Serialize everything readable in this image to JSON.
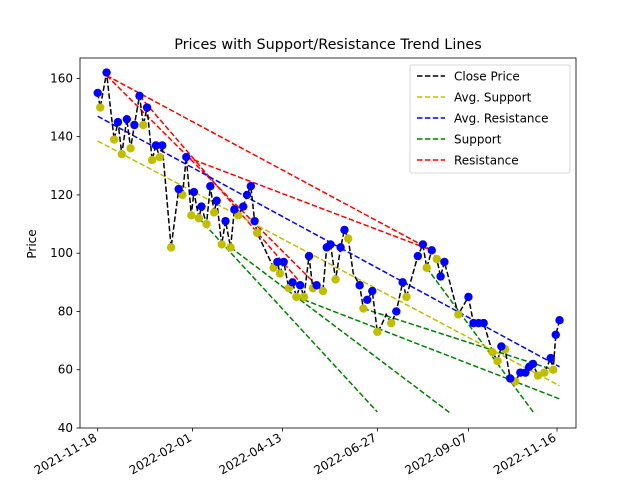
{
  "chart_data": {
    "type": "line",
    "title": "Prices with Support/Resistance Trend Lines",
    "xlabel": "",
    "ylabel": "Price",
    "xlim": [
      "2021-11-04",
      "2022-12-01"
    ],
    "ylim": [
      40,
      167
    ],
    "x_ticks": [
      "2021-11-18",
      "2022-02-01",
      "2022-04-13",
      "2022-06-27",
      "2022-09-07",
      "2022-11-16"
    ],
    "y_ticks": [
      40,
      60,
      80,
      100,
      120,
      140,
      160
    ],
    "grid": false,
    "legend": {
      "position": "top-right",
      "entries": [
        "Close Price",
        "Avg. Support",
        "Avg. Resistance",
        "Support",
        "Resistance"
      ]
    },
    "colors": {
      "close": "#000000",
      "avg_support": "#bfbf00",
      "avg_resistance": "#0000ff",
      "support": "#008000",
      "resistance": "#ff0000",
      "support_marker": "#bfbf00",
      "resistance_marker": "#0000ff"
    },
    "close_series": [
      [
        "2021-11-18",
        155
      ],
      [
        "2021-11-20",
        150
      ],
      [
        "2021-11-25",
        162
      ],
      [
        "2021-11-28",
        150
      ],
      [
        "2021-12-01",
        139
      ],
      [
        "2021-12-04",
        145
      ],
      [
        "2021-12-07",
        134
      ],
      [
        "2021-12-11",
        146
      ],
      [
        "2021-12-14",
        136
      ],
      [
        "2021-12-17",
        144
      ],
      [
        "2021-12-21",
        154
      ],
      [
        "2021-12-24",
        144
      ],
      [
        "2021-12-27",
        150
      ],
      [
        "2021-12-31",
        132
      ],
      [
        "2022-01-03",
        137
      ],
      [
        "2022-01-06",
        133
      ],
      [
        "2022-01-08",
        137
      ],
      [
        "2022-01-15",
        102
      ],
      [
        "2022-01-21",
        122
      ],
      [
        "2022-01-24",
        120
      ],
      [
        "2022-01-27",
        133
      ],
      [
        "2022-01-31",
        113
      ],
      [
        "2022-02-02",
        121
      ],
      [
        "2022-02-06",
        112
      ],
      [
        "2022-02-08",
        116
      ],
      [
        "2022-02-12",
        110
      ],
      [
        "2022-02-15",
        123
      ],
      [
        "2022-02-18",
        114
      ],
      [
        "2022-02-20",
        118
      ],
      [
        "2022-02-24",
        103
      ],
      [
        "2022-02-27",
        111
      ],
      [
        "2022-03-03",
        102
      ],
      [
        "2022-03-06",
        115
      ],
      [
        "2022-03-09",
        113
      ],
      [
        "2022-03-13",
        116
      ],
      [
        "2022-03-16",
        120
      ],
      [
        "2022-03-19",
        123
      ],
      [
        "2022-03-22",
        111
      ],
      [
        "2022-03-24",
        107
      ],
      [
        "2022-04-06",
        95
      ],
      [
        "2022-04-09",
        97
      ],
      [
        "2022-04-11",
        93
      ],
      [
        "2022-04-14",
        97
      ],
      [
        "2022-04-18",
        88
      ],
      [
        "2022-04-21",
        90
      ],
      [
        "2022-04-24",
        85
      ],
      [
        "2022-04-27",
        89
      ],
      [
        "2022-04-30",
        85
      ],
      [
        "2022-05-04",
        99
      ],
      [
        "2022-05-07",
        88
      ],
      [
        "2022-05-10",
        89
      ],
      [
        "2022-05-15",
        87
      ],
      [
        "2022-05-18",
        102
      ],
      [
        "2022-05-21",
        103
      ],
      [
        "2022-05-25",
        91
      ],
      [
        "2022-05-29",
        102
      ],
      [
        "2022-06-01",
        108
      ],
      [
        "2022-06-04",
        105
      ],
      [
        "2022-06-08",
        93
      ],
      [
        "2022-06-13",
        89
      ],
      [
        "2022-06-16",
        81
      ],
      [
        "2022-06-19",
        84
      ],
      [
        "2022-06-23",
        87
      ],
      [
        "2022-06-27",
        73
      ],
      [
        "2022-06-30",
        75
      ],
      [
        "2022-07-04",
        79
      ],
      [
        "2022-07-08",
        76
      ],
      [
        "2022-07-12",
        80
      ],
      [
        "2022-07-17",
        90
      ],
      [
        "2022-07-20",
        85
      ],
      [
        "2022-07-29",
        99
      ],
      [
        "2022-08-02",
        103
      ],
      [
        "2022-08-05",
        95
      ],
      [
        "2022-08-09",
        101
      ],
      [
        "2022-08-13",
        98
      ],
      [
        "2022-08-16",
        92
      ],
      [
        "2022-08-19",
        97
      ],
      [
        "2022-08-30",
        79
      ],
      [
        "2022-09-07",
        85
      ],
      [
        "2022-09-11",
        76
      ],
      [
        "2022-09-15",
        76
      ],
      [
        "2022-09-19",
        76
      ],
      [
        "2022-09-26",
        66
      ],
      [
        "2022-09-30",
        63
      ],
      [
        "2022-10-03",
        68
      ],
      [
        "2022-10-06",
        67
      ],
      [
        "2022-10-10",
        57
      ],
      [
        "2022-10-14",
        56
      ],
      [
        "2022-10-18",
        59
      ],
      [
        "2022-10-22",
        59
      ],
      [
        "2022-10-25",
        61
      ],
      [
        "2022-10-28",
        62
      ],
      [
        "2022-11-01",
        58
      ],
      [
        "2022-11-06",
        59
      ],
      [
        "2022-11-11",
        64
      ],
      [
        "2022-11-13",
        60
      ],
      [
        "2022-11-15",
        72
      ],
      [
        "2022-11-18",
        77
      ]
    ],
    "support_points": [
      [
        "2021-11-20",
        150
      ],
      [
        "2021-12-01",
        139
      ],
      [
        "2021-12-07",
        134
      ],
      [
        "2021-12-14",
        136
      ],
      [
        "2021-12-24",
        144
      ],
      [
        "2021-12-31",
        132
      ],
      [
        "2022-01-06",
        133
      ],
      [
        "2022-01-15",
        102
      ],
      [
        "2022-01-24",
        120
      ],
      [
        "2022-01-31",
        113
      ],
      [
        "2022-02-06",
        112
      ],
      [
        "2022-02-12",
        110
      ],
      [
        "2022-02-18",
        114
      ],
      [
        "2022-02-24",
        103
      ],
      [
        "2022-03-03",
        102
      ],
      [
        "2022-03-09",
        113
      ],
      [
        "2022-03-24",
        107
      ],
      [
        "2022-04-06",
        95
      ],
      [
        "2022-04-11",
        93
      ],
      [
        "2022-04-18",
        88
      ],
      [
        "2022-04-24",
        85
      ],
      [
        "2022-04-30",
        85
      ],
      [
        "2022-05-07",
        88
      ],
      [
        "2022-05-15",
        87
      ],
      [
        "2022-05-25",
        91
      ],
      [
        "2022-06-04",
        105
      ],
      [
        "2022-06-16",
        81
      ],
      [
        "2022-06-27",
        73
      ],
      [
        "2022-07-08",
        76
      ],
      [
        "2022-07-20",
        85
      ],
      [
        "2022-08-05",
        95
      ],
      [
        "2022-08-13",
        98
      ],
      [
        "2022-08-30",
        79
      ],
      [
        "2022-09-26",
        66
      ],
      [
        "2022-09-30",
        63
      ],
      [
        "2022-10-06",
        67
      ],
      [
        "2022-10-14",
        56
      ],
      [
        "2022-11-01",
        58
      ],
      [
        "2022-11-06",
        59
      ],
      [
        "2022-11-13",
        60
      ]
    ],
    "resistance_points": [
      [
        "2021-11-18",
        155
      ],
      [
        "2021-11-25",
        162
      ],
      [
        "2021-12-04",
        145
      ],
      [
        "2021-12-11",
        146
      ],
      [
        "2021-12-17",
        144
      ],
      [
        "2021-12-21",
        154
      ],
      [
        "2021-12-27",
        150
      ],
      [
        "2022-01-03",
        137
      ],
      [
        "2022-01-08",
        137
      ],
      [
        "2022-01-21",
        122
      ],
      [
        "2022-01-27",
        133
      ],
      [
        "2022-02-02",
        121
      ],
      [
        "2022-02-08",
        116
      ],
      [
        "2022-02-15",
        123
      ],
      [
        "2022-02-20",
        118
      ],
      [
        "2022-02-27",
        111
      ],
      [
        "2022-03-06",
        115
      ],
      [
        "2022-03-13",
        116
      ],
      [
        "2022-03-16",
        120
      ],
      [
        "2022-03-19",
        123
      ],
      [
        "2022-03-22",
        111
      ],
      [
        "2022-04-09",
        97
      ],
      [
        "2022-04-14",
        97
      ],
      [
        "2022-04-21",
        90
      ],
      [
        "2022-04-27",
        89
      ],
      [
        "2022-05-04",
        99
      ],
      [
        "2022-05-10",
        89
      ],
      [
        "2022-05-18",
        102
      ],
      [
        "2022-05-21",
        103
      ],
      [
        "2022-05-29",
        102
      ],
      [
        "2022-06-01",
        108
      ],
      [
        "2022-06-13",
        89
      ],
      [
        "2022-06-19",
        84
      ],
      [
        "2022-06-23",
        87
      ],
      [
        "2022-07-12",
        80
      ],
      [
        "2022-07-17",
        90
      ],
      [
        "2022-07-29",
        99
      ],
      [
        "2022-08-02",
        103
      ],
      [
        "2022-08-09",
        101
      ],
      [
        "2022-08-16",
        92
      ],
      [
        "2022-08-19",
        97
      ],
      [
        "2022-09-07",
        85
      ],
      [
        "2022-09-11",
        76
      ],
      [
        "2022-09-15",
        76
      ],
      [
        "2022-09-19",
        76
      ],
      [
        "2022-10-03",
        68
      ],
      [
        "2022-10-10",
        57
      ],
      [
        "2022-10-18",
        59
      ],
      [
        "2022-10-22",
        59
      ],
      [
        "2022-10-25",
        61
      ],
      [
        "2022-10-28",
        62
      ],
      [
        "2022-11-11",
        64
      ],
      [
        "2022-11-15",
        72
      ],
      [
        "2022-11-18",
        77
      ]
    ],
    "avg_support_line": [
      [
        "2021-11-18",
        138.5
      ],
      [
        "2022-11-18",
        54.5
      ]
    ],
    "avg_resistance_line": [
      [
        "2021-11-18",
        147
      ],
      [
        "2022-11-18",
        61
      ]
    ],
    "support_lines": [
      [
        [
          "2022-02-06",
          112
        ],
        [
          "2022-06-27",
          45.5
        ]
      ],
      [
        [
          "2022-03-03",
          102
        ],
        [
          "2022-08-24",
          45
        ]
      ],
      [
        [
          "2022-04-24",
          85
        ],
        [
          "2022-11-18",
          50
        ]
      ],
      [
        [
          "2022-06-16",
          81
        ],
        [
          "2022-11-13",
          60
        ]
      ],
      [
        [
          "2022-08-05",
          95
        ],
        [
          "2022-10-29",
          45
        ]
      ]
    ],
    "resistance_lines": [
      [
        [
          "2021-11-25",
          161
        ],
        [
          "2022-05-10",
          89
        ]
      ],
      [
        [
          "2021-11-25",
          161
        ],
        [
          "2022-08-09",
          101
        ]
      ],
      [
        [
          "2022-01-27",
          133
        ],
        [
          "2022-08-09",
          101
        ]
      ],
      [
        [
          "2021-12-21",
          154
        ],
        [
          "2022-04-27",
          90
        ]
      ]
    ]
  }
}
